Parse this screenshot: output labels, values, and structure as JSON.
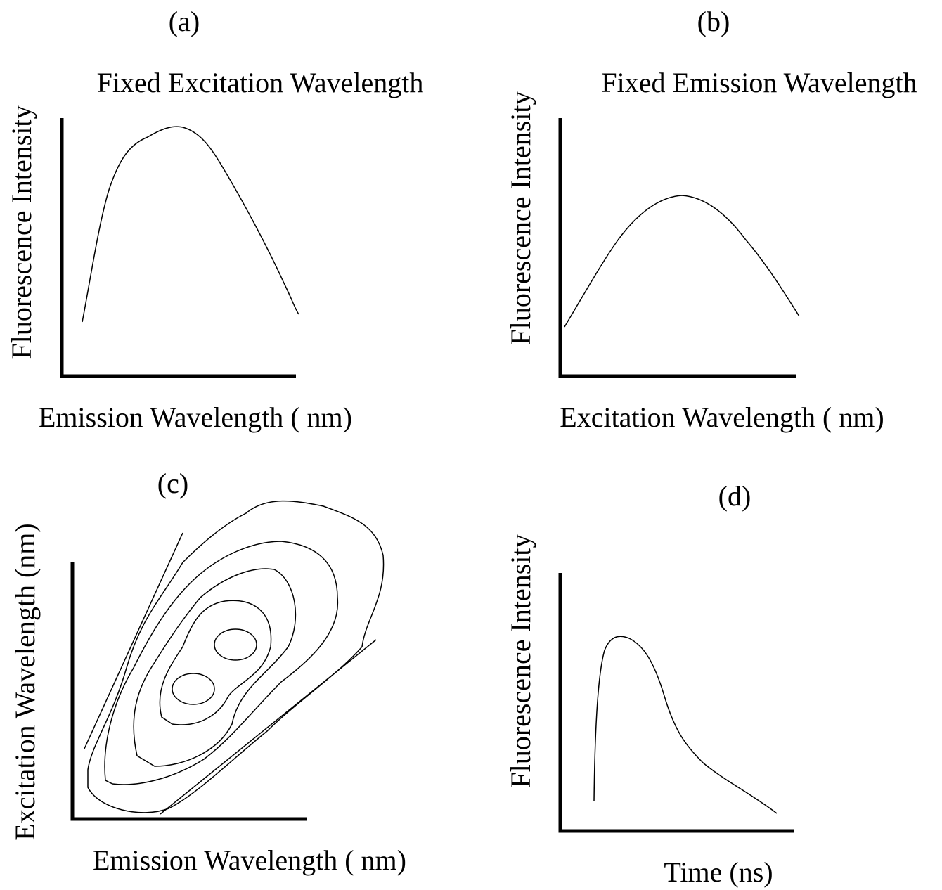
{
  "panels": [
    {
      "label": "(a)",
      "title": "Fixed Excitation Wavelength",
      "x_label": "Emission Wavelength ( nm)",
      "y_label": "Fluorescence Intensity"
    },
    {
      "label": "(b)",
      "title": "Fixed Emission Wavelength",
      "x_label": "Excitation Wavelength ( nm)",
      "y_label": "Fluorescence Intensity"
    },
    {
      "label": "(c)",
      "x_label": "Emission Wavelength ( nm)",
      "y_label": "Excitation Wavelength (nm)"
    },
    {
      "label": "(d)",
      "x_label": "Time (ns)",
      "y_label": "Fluorescence Intensity"
    }
  ]
}
